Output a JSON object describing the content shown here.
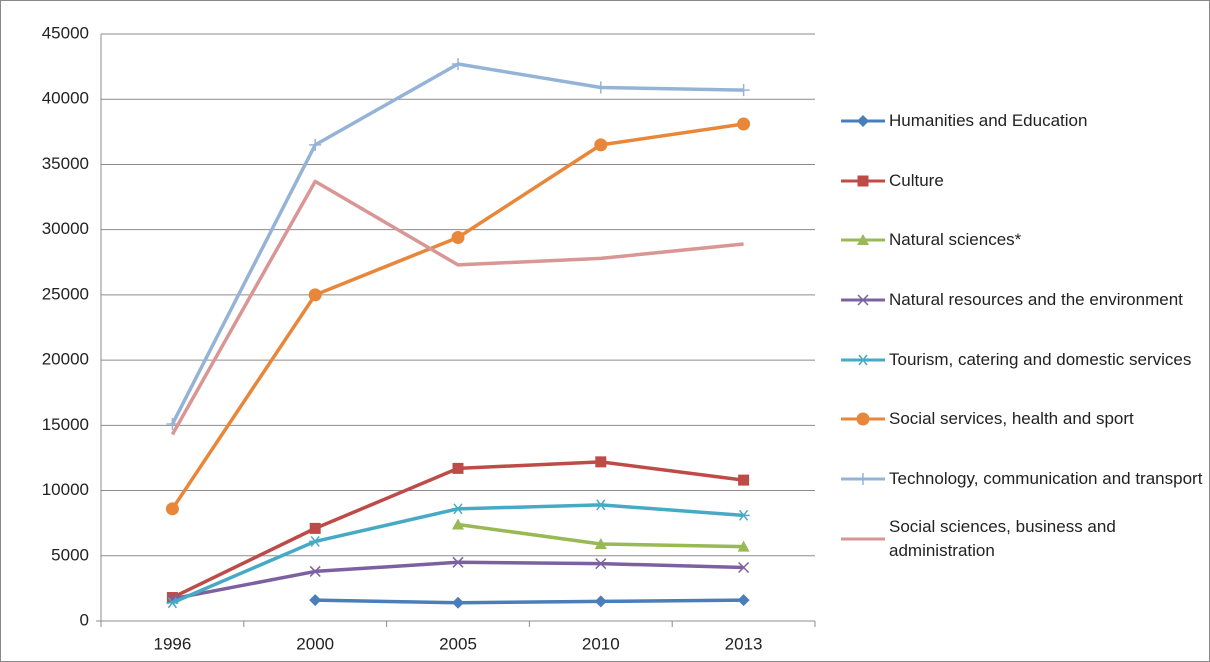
{
  "chart_data": {
    "type": "line",
    "categories": [
      "1996",
      "2000",
      "2005",
      "2010",
      "2013"
    ],
    "ylim": [
      0,
      45000
    ],
    "yticks": [
      0,
      5000,
      10000,
      15000,
      20000,
      25000,
      30000,
      35000,
      40000,
      45000
    ],
    "grid": true,
    "legend": "right",
    "series": [
      {
        "name": "Humanities and Education",
        "color": "#4a7ebb",
        "marker": "diamond",
        "values": [
          null,
          1600,
          1400,
          1500,
          1600
        ]
      },
      {
        "name": "Culture",
        "color": "#be4b48",
        "marker": "square",
        "values": [
          1800,
          7100,
          11700,
          12200,
          10800
        ]
      },
      {
        "name": "Natural sciences*",
        "color": "#98b954",
        "marker": "triangle",
        "values": [
          null,
          null,
          7400,
          5900,
          5700
        ]
      },
      {
        "name": "Natural resources and the environment",
        "color": "#7d60a0",
        "marker": "x",
        "values": [
          1700,
          3800,
          4500,
          4400,
          4100
        ]
      },
      {
        "name": "Tourism, catering and domestic services",
        "color": "#46aac5",
        "marker": "star",
        "values": [
          1400,
          6100,
          8600,
          8900,
          8100
        ]
      },
      {
        "name": "Social services, health and sport",
        "color": "#e8873a",
        "marker": "circle",
        "values": [
          8600,
          25000,
          29400,
          36500,
          38100
        ]
      },
      {
        "name": "Technology, communication and transport",
        "color": "#95b3d7",
        "marker": "plus",
        "values": [
          15100,
          36500,
          42700,
          40900,
          40700
        ]
      },
      {
        "name": "Social sciences, business and administration",
        "color": "#d99694",
        "marker": "none",
        "values": [
          14300,
          33700,
          27300,
          27800,
          28900
        ]
      }
    ]
  }
}
